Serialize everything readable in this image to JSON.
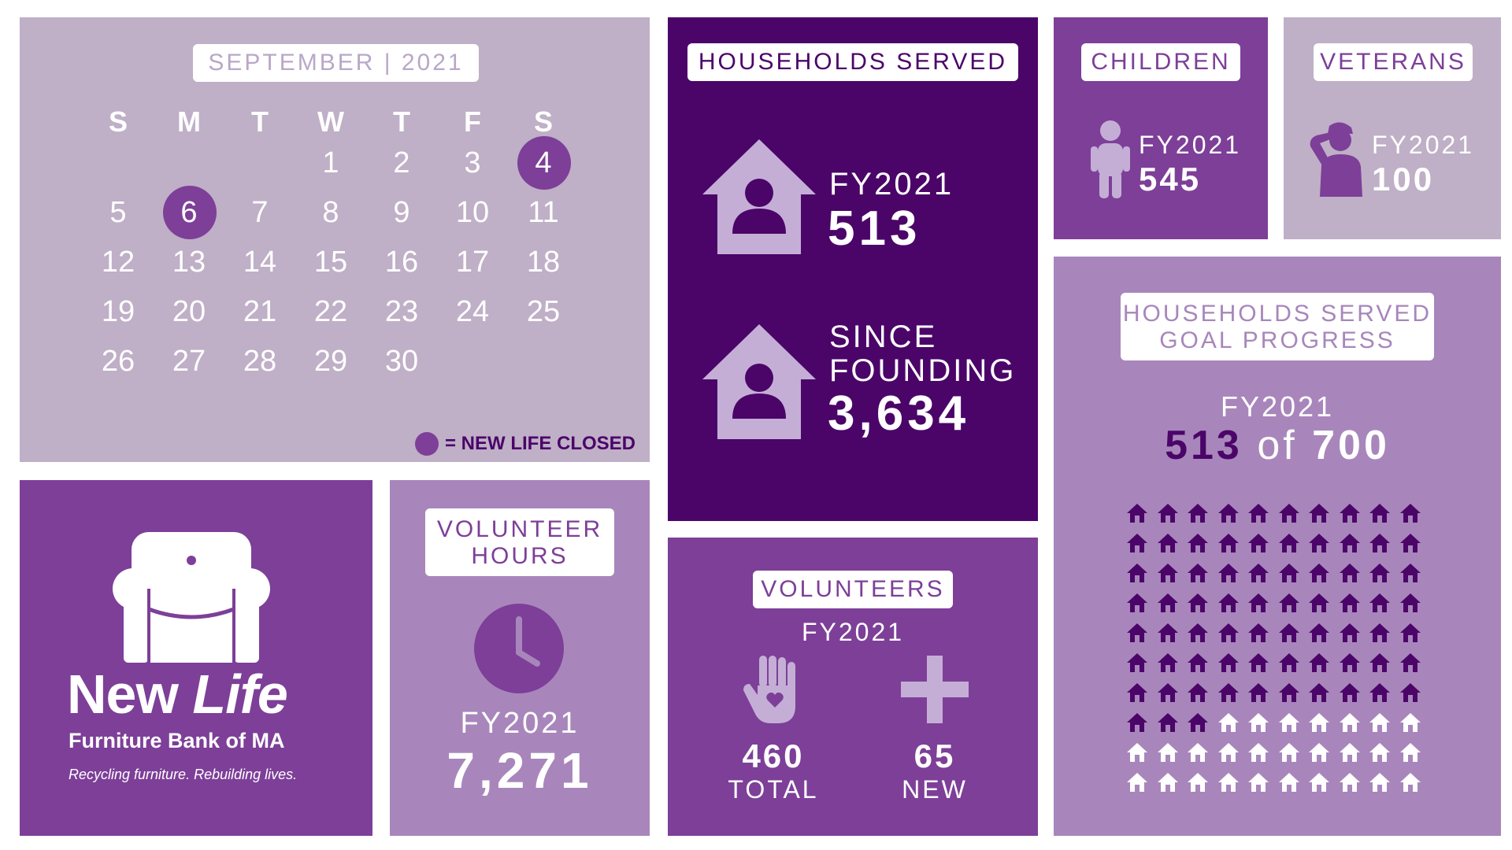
{
  "calendar": {
    "title": "SEPTEMBER | 2021",
    "weekdays": [
      "S",
      "M",
      "T",
      "W",
      "T",
      "F",
      "S"
    ],
    "weeks": [
      [
        "",
        "",
        "",
        "1",
        "2",
        "3",
        "4"
      ],
      [
        "5",
        "6",
        "7",
        "8",
        "9",
        "10",
        "11"
      ],
      [
        "12",
        "13",
        "14",
        "15",
        "16",
        "17",
        "18"
      ],
      [
        "19",
        "20",
        "21",
        "22",
        "23",
        "24",
        "25"
      ],
      [
        "26",
        "27",
        "28",
        "29",
        "30",
        "",
        ""
      ]
    ],
    "closed_days": [
      "4",
      "6"
    ],
    "legend": "= NEW LIFE CLOSED"
  },
  "households": {
    "title": "HOUSEHOLDS SERVED",
    "fy_label": "FY2021",
    "fy_value": "513",
    "since_line1": "SINCE",
    "since_line2": "FOUNDING",
    "since_value": "3,634"
  },
  "children": {
    "title": "CHILDREN",
    "period": "FY2021",
    "value": "545"
  },
  "veterans": {
    "title": "VETERANS",
    "period": "FY2021",
    "value": "100"
  },
  "goal": {
    "title_line1": "HOUSEHOLDS SERVED",
    "title_line2": "GOAL PROGRESS",
    "period": "FY2021",
    "served": "513",
    "of_word": "of",
    "target": "700",
    "icons_total": 100,
    "icons_filled": 73
  },
  "logo": {
    "name_new": "New",
    "name_life": "Life",
    "subtitle": "Furniture Bank of MA",
    "tagline": "Recycling furniture. Rebuilding lives."
  },
  "volunteer_hours": {
    "title_line1": "VOLUNTEER",
    "title_line2": "HOURS",
    "period": "FY2021",
    "value": "7,271"
  },
  "volunteers": {
    "title": "VOLUNTEERS",
    "period": "FY2021",
    "total_value": "460",
    "total_label": "TOTAL",
    "new_value": "65",
    "new_label": "NEW"
  },
  "colors": {
    "dark_purple": "#4b0569",
    "mid_purple": "#7d3f98",
    "light_purple": "#a886bb",
    "pale_purple": "#bfafc7"
  },
  "icons": [
    "house-person-icon",
    "child-icon",
    "veteran-salute-icon",
    "house-icon",
    "armchair-icon",
    "clock-icon",
    "heart-hand-icon",
    "plus-icon"
  ]
}
